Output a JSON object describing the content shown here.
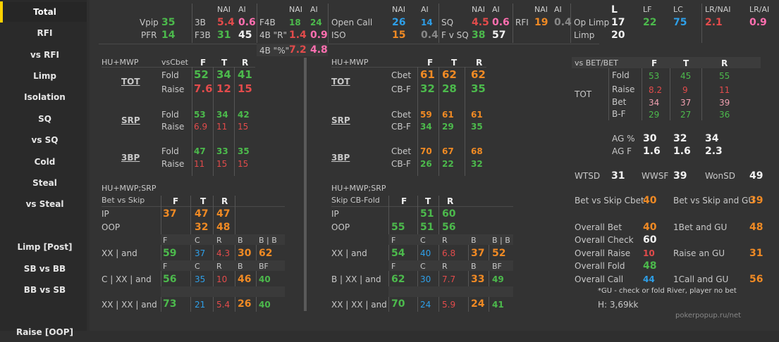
{
  "sidebar": {
    "items": [
      "Total",
      "RFI",
      "vs RFI",
      "Limp",
      "Isolation",
      "SQ",
      "vs SQ",
      "Cold",
      "Steal",
      "vs Steal",
      "Limp [Post]",
      "SB vs BB",
      "BB vs SB",
      "Raise [OOP]"
    ],
    "active": "Total"
  },
  "header": {
    "vpip_label": "Vpip",
    "vpip": "35",
    "pfr_label": "PFR",
    "pfr": "14",
    "nai": "NAI",
    "ai": "AI",
    "b3_label": "3B",
    "b3_nai": "5.4",
    "b3_ai": "0.6",
    "f3b_label": "F3B",
    "f3b_nai": "31",
    "f3b_ai": "45",
    "f4b_label": "F4B",
    "f4b_nai": "18",
    "f4b_ai": "24",
    "b4r_label": "4B \"R\"",
    "b4r_nai": "1.4",
    "b4r_ai": "0.9",
    "b4p_label": "4B \"%\"",
    "b4p_nai": "7.2",
    "b4p_ai": "4.8",
    "opencall_label": "Open Call",
    "opencall_nai": "26",
    "opencall_ai": "14",
    "iso_label": "ISO",
    "iso_nai": "15",
    "iso_ai": "0.4",
    "sq_label": "SQ",
    "sq_nai": "4.5",
    "sq_ai": "0.6",
    "fvsq_label": "F v SQ",
    "fvsq_nai": "38",
    "fvsq_ai": "57",
    "rfi_label": "RFI",
    "rfi_nai": "19",
    "rfi_ai": "0.4",
    "oplimp_label": "Op Limp",
    "oplimp": "17",
    "limp_label": "Limp",
    "limp": "20",
    "l_label": "L",
    "lf_label": "LF",
    "lf": "22",
    "lc_label": "LC",
    "lc": "75",
    "lrnai_label": "LR/NAI",
    "lrnai": "2.1",
    "lrai_label": "LR/AI",
    "lrai": "0.9"
  },
  "left": {
    "title": "HU+MWP",
    "sub": "vsCbet",
    "cols": [
      "F",
      "T",
      "R"
    ],
    "tot": {
      "label": "TOT",
      "fold": [
        "52",
        "34",
        "41"
      ],
      "raise": [
        "7.6",
        "12",
        "15"
      ]
    },
    "srp": {
      "label": "SRP",
      "fold": [
        "53",
        "34",
        "42"
      ],
      "raise": [
        "6.9",
        "11",
        "15"
      ]
    },
    "bp3": {
      "label": "3BP",
      "fold": [
        "47",
        "33",
        "35"
      ],
      "raise": [
        "11",
        "15",
        "15"
      ]
    },
    "fold_label": "Fold",
    "raise_label": "Raise",
    "title2": "HU+MWP;SRP",
    "sub2": "Bet vs Skip",
    "ip_label": "IP",
    "ip": [
      "37",
      "47",
      "47"
    ],
    "oop_label": "OOP",
    "oop": [
      "32",
      "48"
    ],
    "h1": [
      "F",
      "C",
      "R",
      "B",
      "B | B"
    ],
    "row1_label": "XX | and",
    "row1": [
      "59",
      "37",
      "4.3",
      "30",
      "62"
    ],
    "h2": [
      "F",
      "C",
      "R",
      "B",
      "BF"
    ],
    "row2_label": "C | XX | and",
    "row2": [
      "56",
      "35",
      "10",
      "46",
      "40"
    ],
    "row3_label": "XX | XX | and",
    "row3": [
      "73",
      "21",
      "5.4",
      "26",
      "40"
    ]
  },
  "mid": {
    "title": "HU+MWP",
    "cols": [
      "F",
      "T",
      "R"
    ],
    "cbet_label": "Cbet",
    "cbf_label": "CB-F",
    "tot": {
      "label": "TOT",
      "cbet": [
        "61",
        "62",
        "62"
      ],
      "cbf": [
        "32",
        "28",
        "35"
      ]
    },
    "srp": {
      "label": "SRP",
      "cbet": [
        "59",
        "61",
        "61"
      ],
      "cbf": [
        "34",
        "29",
        "35"
      ]
    },
    "bp3": {
      "label": "3BP",
      "cbet": [
        "70",
        "67",
        "68"
      ],
      "cbf": [
        "26",
        "22",
        "32"
      ]
    },
    "title2": "HU+MWP;SRP",
    "sub2": "Skip CB-Fold",
    "ip_label": "IP",
    "ip": [
      "51",
      "60"
    ],
    "oop_label": "OOP",
    "oop": [
      "55",
      "51",
      "56"
    ],
    "h1": [
      "F",
      "C",
      "R",
      "B",
      "B | B"
    ],
    "row1_label": "XX | and",
    "row1": [
      "54",
      "40",
      "6.8",
      "37",
      "52"
    ],
    "h2": [
      "F",
      "C",
      "R",
      "B",
      "BF"
    ],
    "row2_label": "B | XX | and",
    "row2": [
      "62",
      "30",
      "7.7",
      "33",
      "49"
    ],
    "row3_label": "XX | XX | and",
    "row3": [
      "70",
      "24",
      "5.9",
      "24",
      "41"
    ]
  },
  "right": {
    "title": "vs BET/BET",
    "cols": [
      "F",
      "T",
      "R"
    ],
    "tot_label": "TOT",
    "rows": [
      {
        "label": "Fold",
        "vals": [
          "53",
          "45",
          "55"
        ]
      },
      {
        "label": "Raise",
        "vals": [
          "8.2",
          "9",
          "11"
        ]
      },
      {
        "label": "Bet",
        "vals": [
          "34",
          "37",
          "39"
        ]
      },
      {
        "label": "B-F",
        "vals": [
          "29",
          "27",
          "36"
        ]
      }
    ],
    "ag_label": "AG %",
    "ag": [
      "30",
      "32",
      "34"
    ],
    "agf_label": "AG F",
    "agf": [
      "1.6",
      "1.6",
      "2.3"
    ],
    "wtsd_label": "WTSD",
    "wtsd": "31",
    "wwsf_label": "WWSF",
    "wwsf": "39",
    "wonsd_label": "WonSD",
    "wonsd": "49",
    "bvsc_label": "Bet vs Skip Cbet",
    "bvsc": "40",
    "bvsgu_label": "Bet vs Skip and GU",
    "bvsgu": "39",
    "obet_label": "Overall Bet",
    "obet": "40",
    "bgu_label": "1Bet and GU",
    "bgu": "48",
    "ocheck_label": "Overall Check",
    "ocheck": "60",
    "oraise_label": "Overall Raise",
    "oraise": "10",
    "rgu_label": "Raise an GU",
    "rgu": "31",
    "ofold_label": "Overall Fold",
    "ofold": "48",
    "ocall_label": "Overall Call",
    "ocall": "44",
    "cgu_label": "1Call and GU",
    "cgu": "56",
    "note": "*GU - check or fold River, player no bet",
    "hands": "H:  3,69kk",
    "watermark": "pokerpopup.ru/net"
  },
  "colors": {
    "green": "#4cba4c",
    "red": "#e24b4b",
    "orange": "#f08a24",
    "blue": "#2e9fe8",
    "pink": "#ff6fb0",
    "accent": "#ffd200"
  }
}
